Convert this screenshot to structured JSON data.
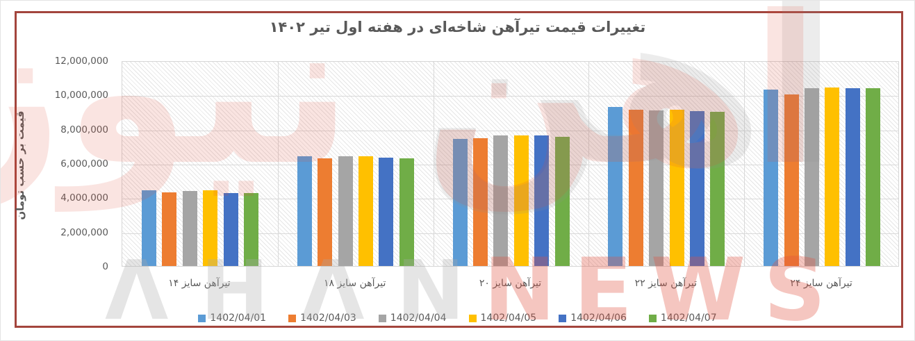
{
  "chart_data": {
    "type": "bar",
    "title": "تغییرات قیمت تیرآهن شاخه‌ای در هفته اول تیر ۱۴۰۲",
    "xlabel": "",
    "ylabel": "قیمت بر حسب  تومان",
    "ylim": [
      0,
      12000000
    ],
    "ytick_step": 2000000,
    "ytick_labels": [
      "0",
      "2,000,000",
      "4,000,000",
      "6,000,000",
      "8,000,000",
      "10,000,000",
      "12,000,000"
    ],
    "grid": true,
    "legend_position": "bottom",
    "categories": [
      "تیرآهن سایز ۱۴",
      "تیرآهن سایز ۱۸",
      "تیرآهن سایز ۲۰",
      "تیرآهن سایز ۲۲",
      "تیرآهن سایز ۲۴"
    ],
    "series": [
      {
        "name": "1402/04/01",
        "color": "#5B9BD5",
        "values": [
          4400000,
          6420000,
          7410000,
          9290000,
          10310000
        ]
      },
      {
        "name": "1402/04/03",
        "color": "#ED7D31",
        "values": [
          4300000,
          6300000,
          7450000,
          9110000,
          10020000
        ]
      },
      {
        "name": "1402/04/04",
        "color": "#A5A5A5",
        "values": [
          4390000,
          6400000,
          7640000,
          9090000,
          10390000
        ]
      },
      {
        "name": "1402/04/05",
        "color": "#FFC000",
        "values": [
          4430000,
          6420000,
          7610000,
          9110000,
          10400000
        ]
      },
      {
        "name": "1402/04/06",
        "color": "#4472C4",
        "values": [
          4270000,
          6320000,
          7630000,
          9050000,
          10390000
        ]
      },
      {
        "name": "1402/04/07",
        "color": "#70AD47",
        "values": [
          4270000,
          6280000,
          7560000,
          9010000,
          10370000
        ]
      }
    ]
  },
  "frame": {
    "border_color": "#a3453d"
  },
  "watermark": {
    "persian_text": "آهن نیوز",
    "gray_text": "آهن",
    "latin_left": "ΛHΛN",
    "latin_right": "NEWS"
  }
}
